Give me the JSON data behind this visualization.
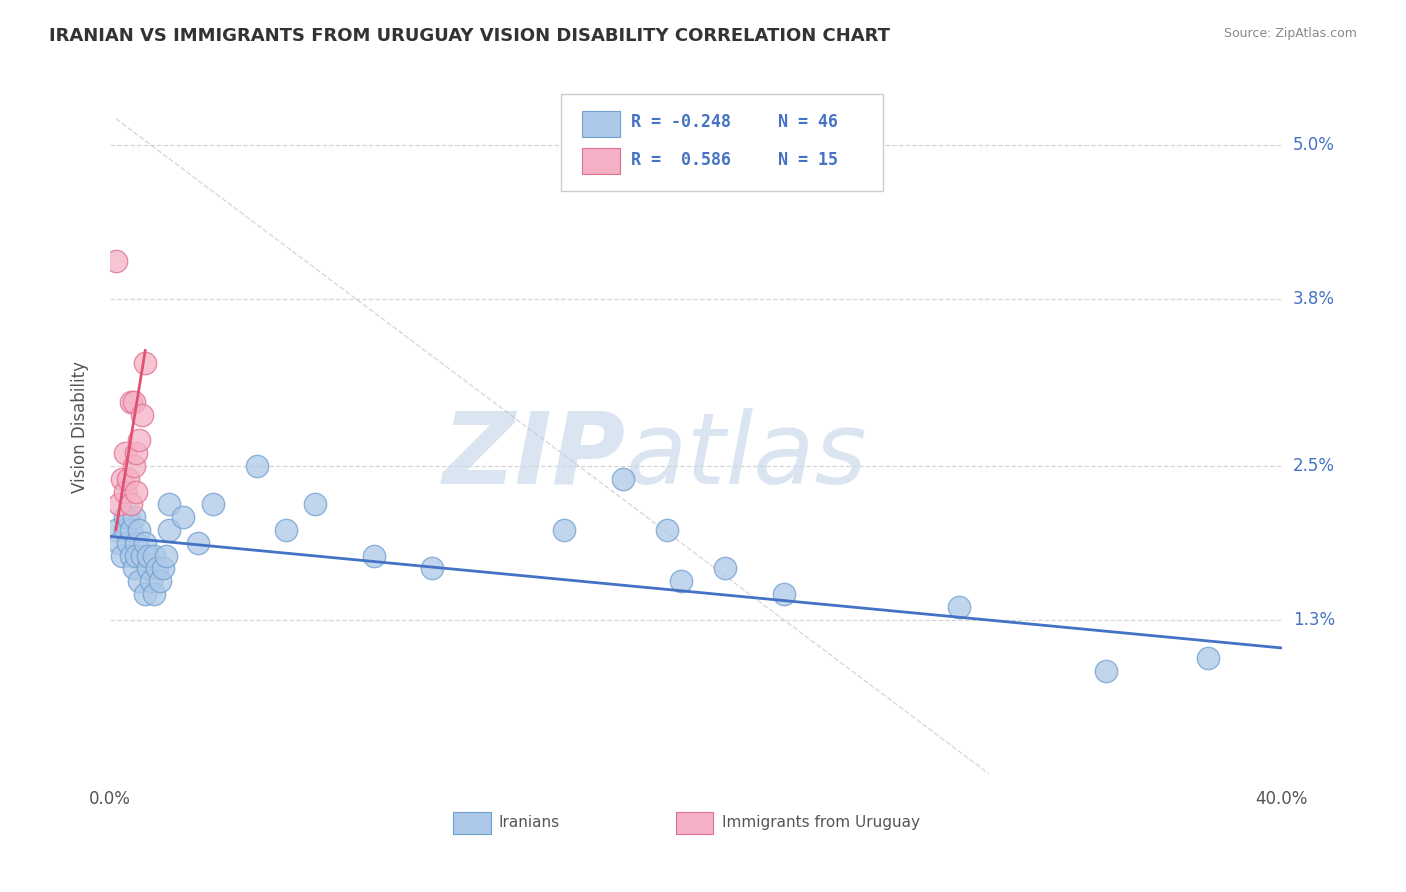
{
  "title": "IRANIAN VS IMMIGRANTS FROM URUGUAY VISION DISABILITY CORRELATION CHART",
  "source": "Source: ZipAtlas.com",
  "ylabel": "Vision Disability",
  "y_tick_labels": [
    "1.3%",
    "2.5%",
    "3.8%",
    "5.0%"
  ],
  "y_tick_values": [
    0.013,
    0.025,
    0.038,
    0.05
  ],
  "x_min": 0.0,
  "x_max": 0.4,
  "y_min": 0.0,
  "y_max": 0.056,
  "watermark_zip": "ZIP",
  "watermark_atlas": "atlas",
  "watermark_color_zip": "#c8d8e8",
  "watermark_color_atlas": "#c8d8e8",
  "iranians_color": "#adc8e8",
  "iranians_edge": "#6fa0d0",
  "uruguay_color": "#f4b0c4",
  "uruguay_edge": "#e07090",
  "blue_line_color": "#4472c4",
  "pink_line_color": "#e05070",
  "diag_line_color": "#c8c8c8",
  "grid_color": "#cccccc",
  "background_color": "#ffffff",
  "title_color": "#333333",
  "source_color": "#888888",
  "axis_label_color": "#4472c4",
  "iranians_x": [
    0.002,
    0.003,
    0.004,
    0.005,
    0.005,
    0.006,
    0.006,
    0.007,
    0.007,
    0.008,
    0.008,
    0.009,
    0.009,
    0.01,
    0.01,
    0.011,
    0.012,
    0.012,
    0.013,
    0.013,
    0.014,
    0.015,
    0.015,
    0.016,
    0.017,
    0.018,
    0.019,
    0.02,
    0.02,
    0.025,
    0.03,
    0.035,
    0.05,
    0.06,
    0.07,
    0.09,
    0.11,
    0.155,
    0.175,
    0.19,
    0.195,
    0.21,
    0.23,
    0.29,
    0.34,
    0.375
  ],
  "iranians_y": [
    0.02,
    0.019,
    0.018,
    0.021,
    0.02,
    0.021,
    0.019,
    0.02,
    0.018,
    0.021,
    0.017,
    0.019,
    0.018,
    0.02,
    0.016,
    0.018,
    0.019,
    0.015,
    0.017,
    0.018,
    0.016,
    0.018,
    0.015,
    0.017,
    0.016,
    0.017,
    0.018,
    0.022,
    0.02,
    0.021,
    0.019,
    0.022,
    0.025,
    0.02,
    0.022,
    0.018,
    0.017,
    0.02,
    0.024,
    0.02,
    0.016,
    0.017,
    0.015,
    0.014,
    0.009,
    0.01
  ],
  "uruguay_x": [
    0.002,
    0.003,
    0.004,
    0.005,
    0.005,
    0.006,
    0.007,
    0.007,
    0.008,
    0.008,
    0.009,
    0.009,
    0.01,
    0.011,
    0.012
  ],
  "uruguay_y": [
    0.041,
    0.022,
    0.024,
    0.023,
    0.026,
    0.024,
    0.03,
    0.022,
    0.03,
    0.025,
    0.026,
    0.023,
    0.027,
    0.029,
    0.033
  ],
  "legend_r1": "R = -0.248",
  "legend_n1": "N = 46",
  "legend_r2": "R =  0.586",
  "legend_n2": "N = 15",
  "blue_trend_x0": 0.0,
  "blue_trend_x1": 0.4,
  "blue_trend_y0": 0.0195,
  "blue_trend_y1": 0.0108,
  "pink_trend_x0": 0.002,
  "pink_trend_x1": 0.012,
  "pink_trend_y0": 0.02,
  "pink_trend_y1": 0.034
}
